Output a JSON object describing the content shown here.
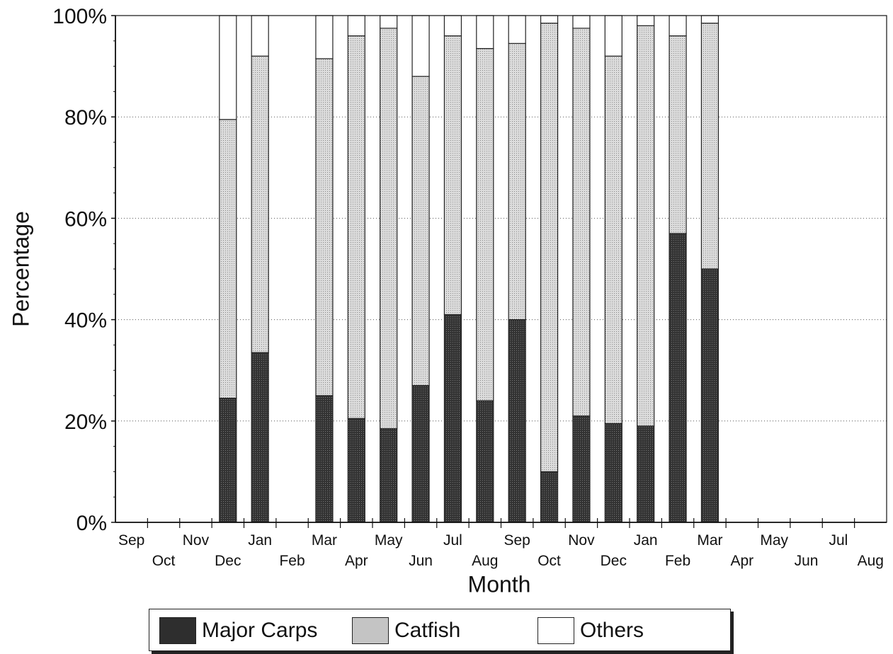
{
  "chart_data": {
    "type": "bar",
    "stacked": true,
    "ylabel": "Percentage",
    "xlabel": "Month",
    "ylim": [
      0,
      100
    ],
    "y_ticks": [
      "0%",
      "20%",
      "40%",
      "60%",
      "80%",
      "100%"
    ],
    "grid": "dotted horizontal",
    "legend_position": "bottom",
    "categories": [
      "Sep",
      "Oct",
      "Nov",
      "Dec",
      "Jan",
      "Feb",
      "Mar",
      "Apr",
      "May",
      "Jun",
      "Jul",
      "Aug",
      "Sep",
      "Oct",
      "Nov",
      "Dec",
      "Jan",
      "Feb",
      "Mar",
      "Apr",
      "May",
      "Jun",
      "Jul",
      "Aug"
    ],
    "series": [
      {
        "name": "Major Carps",
        "color": "#2b2b2b",
        "values": [
          null,
          null,
          null,
          24.5,
          33.5,
          null,
          25,
          20.5,
          18.5,
          27,
          41,
          24,
          40,
          10,
          21,
          19.5,
          19,
          57,
          50,
          null,
          null,
          null,
          null,
          null
        ]
      },
      {
        "name": "Catfish",
        "color": "#c8c8c8",
        "values": [
          null,
          null,
          null,
          55,
          58.5,
          null,
          66.5,
          75.5,
          79,
          61,
          55,
          69.5,
          54.5,
          88.5,
          76.5,
          72.5,
          79,
          39,
          48.5,
          null,
          null,
          null,
          null,
          null
        ]
      },
      {
        "name": "Others",
        "color": "#ffffff",
        "values": [
          null,
          null,
          null,
          20.5,
          8,
          null,
          8.5,
          4,
          2.5,
          12,
          4,
          6.5,
          5.5,
          1.5,
          2.5,
          8,
          2,
          4,
          1.5,
          null,
          null,
          null,
          null,
          null
        ]
      }
    ]
  }
}
